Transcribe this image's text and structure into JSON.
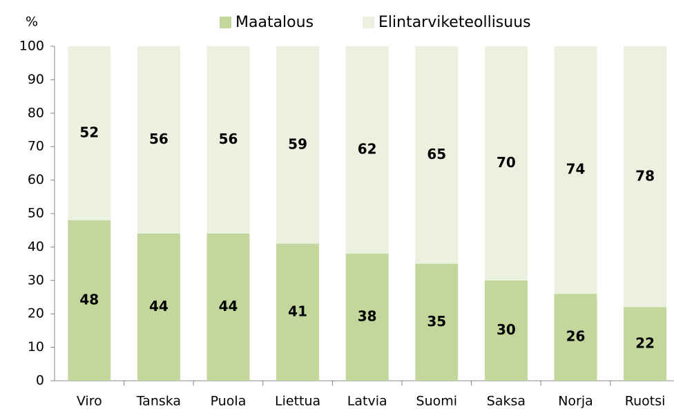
{
  "chart_data": {
    "type": "stacked_bar",
    "y_label": "%",
    "categories": [
      "Viro",
      "Tanska",
      "Puola",
      "Liettua",
      "Latvia",
      "Suomi",
      "Saksa",
      "Norja",
      "Ruotsi"
    ],
    "series": [
      {
        "name": "Maatalous",
        "color": "#c3d69b",
        "values": [
          48,
          44,
          44,
          41,
          38,
          35,
          30,
          26,
          22
        ]
      },
      {
        "name": "Elintarviketeollisuus",
        "color": "#ebf1de",
        "values": [
          52,
          56,
          56,
          59,
          62,
          65,
          70,
          74,
          78
        ]
      }
    ],
    "ylim": [
      0,
      100
    ],
    "yticks": [
      0,
      10,
      20,
      30,
      40,
      50,
      60,
      70,
      80,
      90,
      100
    ],
    "grid": false,
    "legend": "top"
  }
}
